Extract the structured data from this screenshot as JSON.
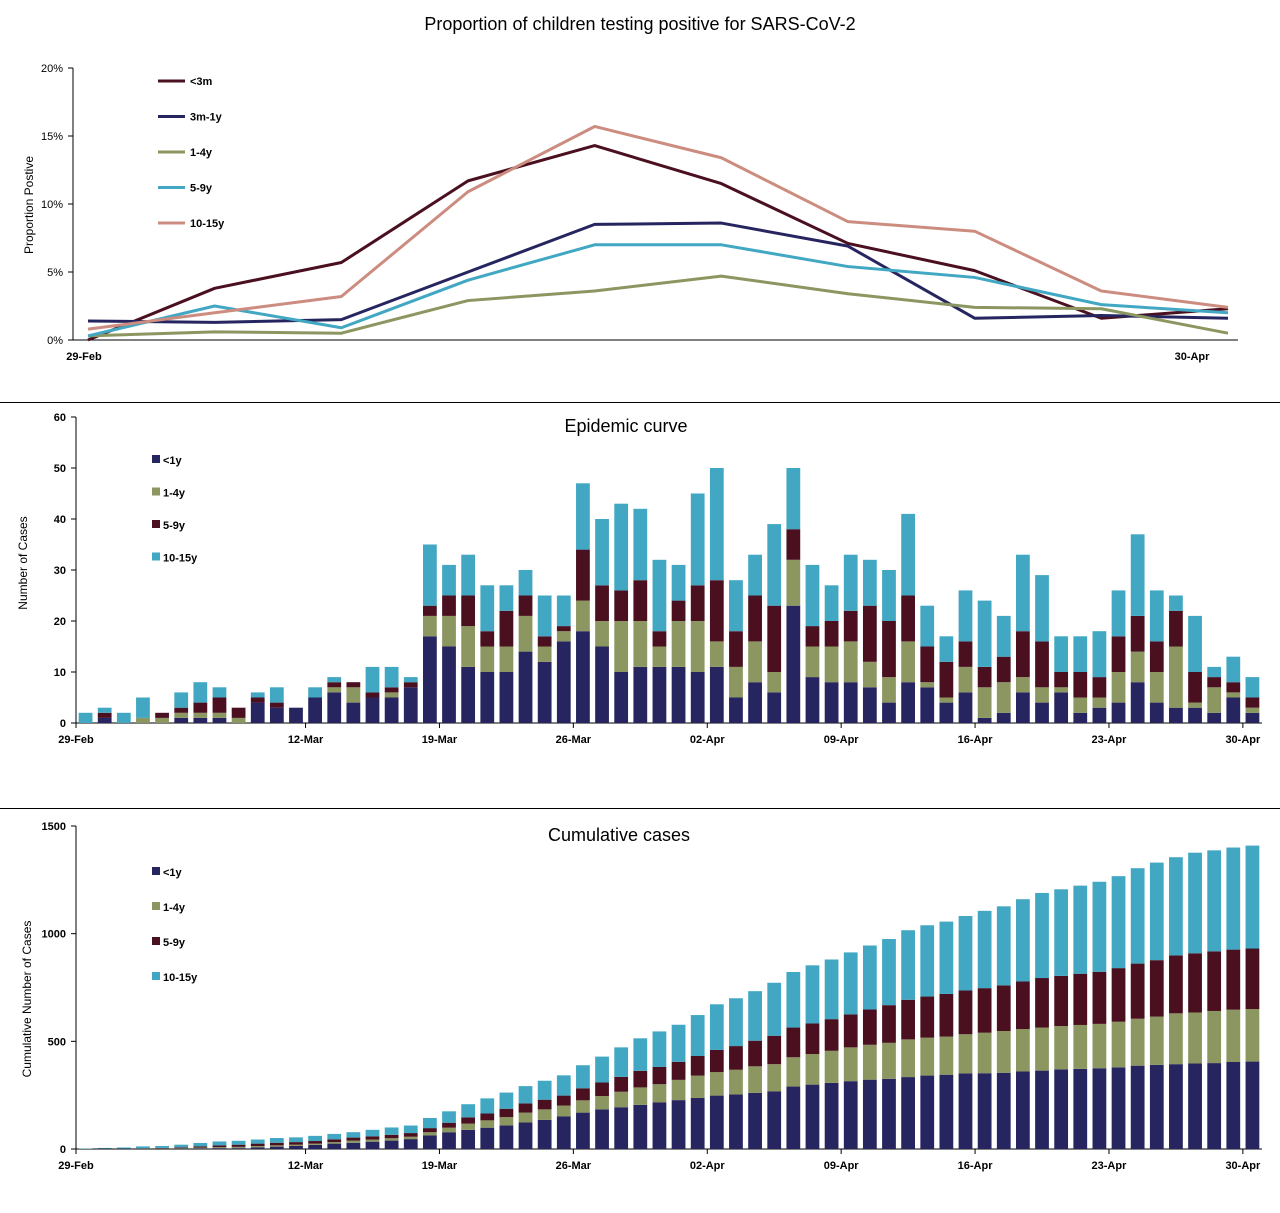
{
  "charts": {
    "proportion": {
      "title": "Proportion of children testing positive for SARS-CoV-2",
      "ylabel": "Proportion Postive",
      "y_ticks": [
        "0%",
        "5%",
        "10%",
        "15%",
        "20%"
      ],
      "x_tick_labels": [
        "29-Feb",
        "30-Apr"
      ]
    },
    "epidemic": {
      "title": "Epidemic curve",
      "ylabel": "Number  of Cases",
      "y_ticks": [
        "0",
        "10",
        "20",
        "30",
        "40",
        "50",
        "60"
      ],
      "x_tick_labels": [
        "29-Feb",
        "12-Mar",
        "19-Mar",
        "26-Mar",
        "02-Apr",
        "09-Apr",
        "16-Apr",
        "23-Apr",
        "30-Apr"
      ]
    },
    "cumulative": {
      "title": "Cumulative cases",
      "ylabel": "Cumulative Number  of Cases",
      "y_ticks": [
        "0",
        "500",
        "1000",
        "1500"
      ],
      "x_tick_labels": [
        "29-Feb",
        "12-Mar",
        "19-Mar",
        "26-Mar",
        "02-Apr",
        "09-Apr",
        "16-Apr",
        "23-Apr",
        "30-Apr"
      ]
    }
  },
  "chart_data": [
    {
      "type": "line",
      "title": "Proportion of children testing positive for SARS-CoV-2",
      "xlabel": "",
      "ylabel": "Proportion Postive",
      "ylim": [
        0,
        20
      ],
      "y_unit": "%",
      "x_tick_labels": [
        "29-Feb",
        "30-Apr"
      ],
      "legend_position": "top-left",
      "grid": false,
      "series": [
        {
          "name": "<3m",
          "color": "#4a1020",
          "values": [
            0.0,
            3.8,
            5.7,
            11.7,
            14.3,
            11.5,
            7.1,
            5.1,
            1.6,
            2.3
          ]
        },
        {
          "name": "3m-1y",
          "color": "#262560",
          "values": [
            1.4,
            1.3,
            1.5,
            5.0,
            8.5,
            8.6,
            6.9,
            1.6,
            1.8,
            1.6
          ]
        },
        {
          "name": "1-4y",
          "color": "#8c9660",
          "values": [
            0.3,
            0.6,
            0.5,
            2.9,
            3.6,
            4.7,
            3.4,
            2.4,
            2.3,
            0.5
          ]
        },
        {
          "name": "5-9y",
          "color": "#41a7c3",
          "values": [
            0.3,
            2.5,
            0.9,
            4.4,
            7.0,
            7.0,
            5.4,
            4.6,
            2.6,
            2.0
          ]
        },
        {
          "name": "10-15y",
          "color": "#cc8c80",
          "values": [
            0.8,
            2.0,
            3.2,
            10.9,
            15.7,
            13.4,
            8.7,
            8.0,
            3.6,
            2.4
          ]
        }
      ]
    },
    {
      "type": "bar",
      "stacked": true,
      "title": "Epidemic curve",
      "xlabel": "",
      "ylabel": "Number  of Cases",
      "ylim": [
        0,
        60
      ],
      "x_tick_labels": [
        "29-Feb",
        "12-Mar",
        "19-Mar",
        "26-Mar",
        "02-Apr",
        "09-Apr",
        "16-Apr",
        "23-Apr",
        "30-Apr"
      ],
      "legend_position": "top-left",
      "grid": false,
      "series": [
        {
          "name": "<1y",
          "color": "#262560",
          "values": [
            0,
            1,
            0,
            0,
            0,
            1,
            1,
            1,
            0,
            4,
            3,
            3,
            5,
            6,
            4,
            5,
            5,
            7,
            17,
            15,
            11,
            10,
            10,
            14,
            12,
            16,
            18,
            15,
            10,
            11,
            11,
            11,
            10,
            11,
            5,
            8,
            6,
            23,
            9,
            8,
            8,
            7,
            4,
            8,
            7,
            4,
            6,
            1,
            2,
            6,
            4,
            6,
            2,
            3,
            4,
            8,
            4,
            3,
            3,
            2,
            5,
            2
          ]
        },
        {
          "name": "1-4y",
          "color": "#8c9660",
          "values": [
            0,
            0,
            0,
            1,
            1,
            1,
            1,
            1,
            1,
            0,
            0,
            0,
            0,
            1,
            3,
            0,
            1,
            0,
            4,
            6,
            8,
            5,
            5,
            7,
            3,
            2,
            6,
            5,
            10,
            9,
            4,
            9,
            10,
            5,
            6,
            8,
            4,
            9,
            6,
            7,
            8,
            5,
            5,
            8,
            1,
            1,
            5,
            6,
            6,
            3,
            3,
            1,
            3,
            2,
            6,
            6,
            6,
            12,
            1,
            5,
            1,
            1
          ]
        },
        {
          "name": "5-9y",
          "color": "#4a1020",
          "values": [
            0,
            1,
            0,
            0,
            1,
            1,
            2,
            3,
            2,
            1,
            1,
            0,
            0,
            1,
            1,
            1,
            1,
            1,
            2,
            4,
            6,
            3,
            7,
            4,
            2,
            1,
            10,
            7,
            6,
            8,
            3,
            4,
            7,
            12,
            7,
            9,
            13,
            6,
            4,
            5,
            6,
            11,
            11,
            9,
            7,
            7,
            5,
            4,
            5,
            9,
            9,
            3,
            5,
            4,
            7,
            7,
            6,
            7,
            6,
            2,
            2,
            2
          ]
        },
        {
          "name": "10-15y",
          "color": "#41a7c3",
          "values": [
            2,
            1,
            2,
            4,
            0,
            3,
            4,
            2,
            0,
            1,
            3,
            0,
            2,
            1,
            0,
            5,
            4,
            1,
            12,
            6,
            8,
            9,
            5,
            5,
            8,
            6,
            13,
            13,
            17,
            14,
            14,
            7,
            18,
            22,
            10,
            8,
            16,
            12,
            12,
            7,
            11,
            9,
            10,
            16,
            8,
            5,
            10,
            13,
            8,
            15,
            13,
            7,
            7,
            9,
            9,
            16,
            10,
            3,
            11,
            2,
            5,
            4
          ]
        }
      ]
    },
    {
      "type": "bar",
      "stacked": true,
      "title": "Cumulative cases",
      "xlabel": "",
      "ylabel": "Cumulative Number  of Cases",
      "ylim": [
        0,
        1500
      ],
      "x_tick_labels": [
        "29-Feb",
        "12-Mar",
        "19-Mar",
        "26-Mar",
        "02-Apr",
        "09-Apr",
        "16-Apr",
        "23-Apr",
        "30-Apr"
      ],
      "legend_position": "top-left",
      "grid": false,
      "cumulative_of": "Epidemic curve"
    }
  ],
  "legends": {
    "proportion": [
      {
        "label": "<3m",
        "color": "#4a1020"
      },
      {
        "label": "3m-1y",
        "color": "#262560"
      },
      {
        "label": "1-4y",
        "color": "#8c9660"
      },
      {
        "label": "5-9y",
        "color": "#41a7c3"
      },
      {
        "label": "10-15y",
        "color": "#cc8c80"
      }
    ],
    "epidemic": [
      {
        "label": "<1y",
        "color": "#262560"
      },
      {
        "label": "1-4y",
        "color": "#8c9660"
      },
      {
        "label": "5-9y",
        "color": "#4a1020"
      },
      {
        "label": "10-15y",
        "color": "#41a7c3"
      }
    ],
    "cumulative": [
      {
        "label": "<1y",
        "color": "#262560"
      },
      {
        "label": "1-4y",
        "color": "#8c9660"
      },
      {
        "label": "5-9y",
        "color": "#4a1020"
      },
      {
        "label": "10-15y",
        "color": "#41a7c3"
      }
    ]
  }
}
